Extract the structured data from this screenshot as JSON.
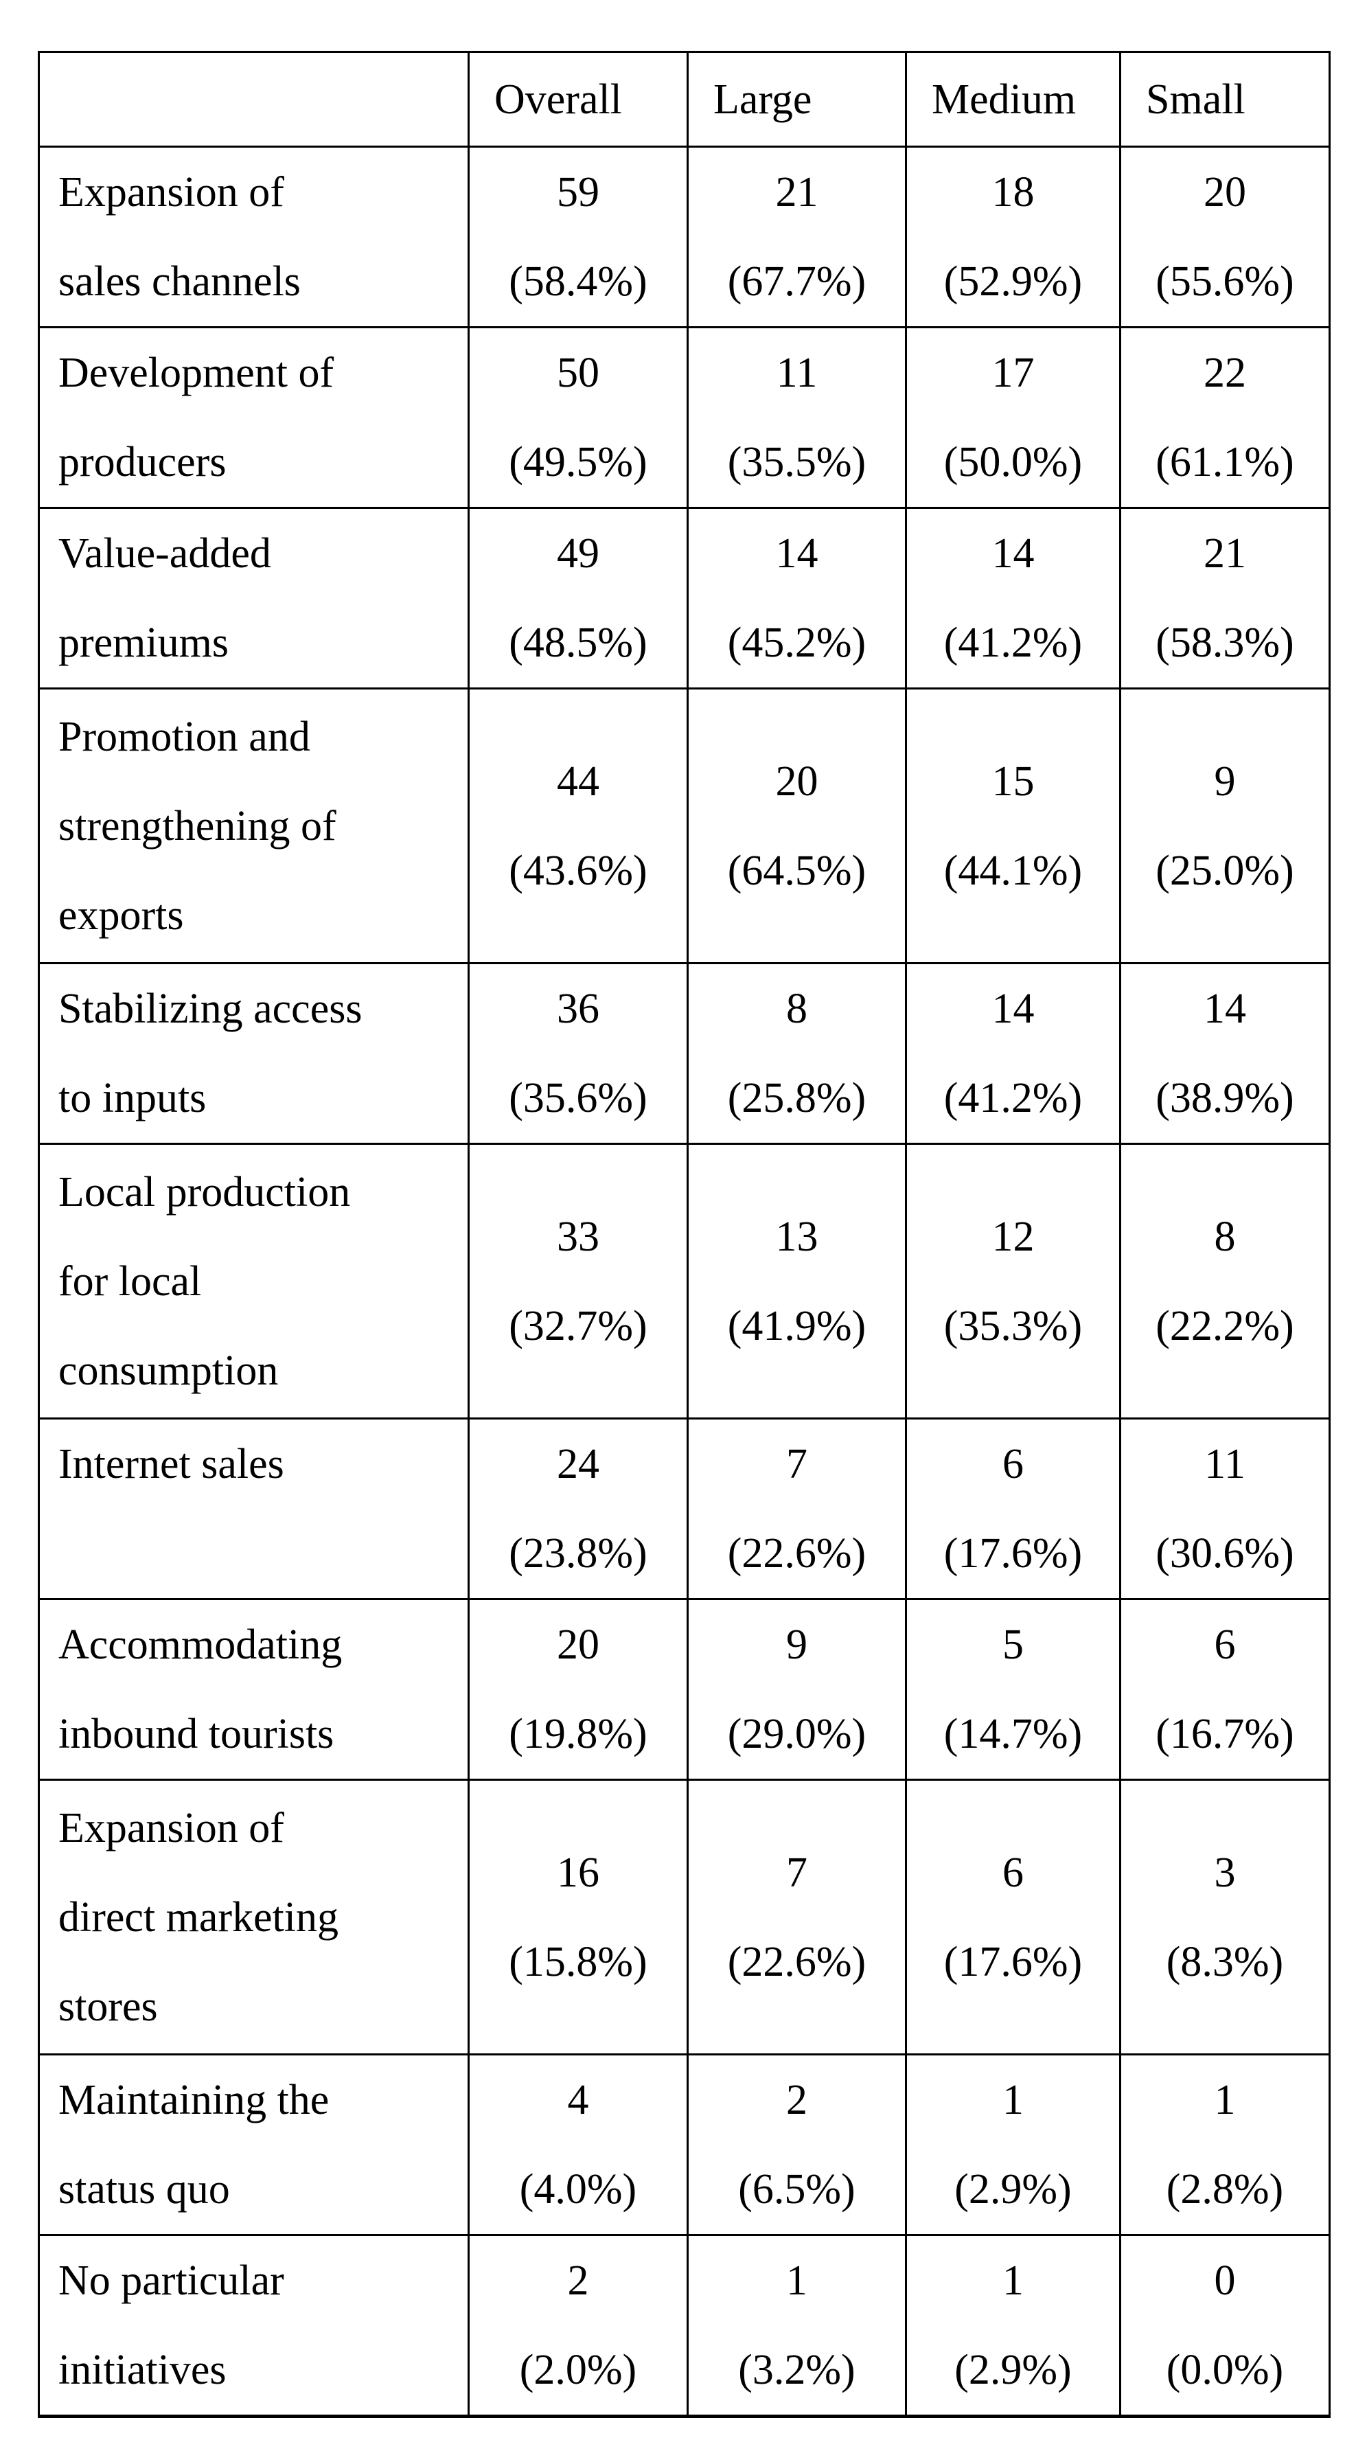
{
  "colors": {
    "text": "#000000",
    "background": "#ffffff",
    "border": "#000000"
  },
  "table": {
    "columns": [
      "",
      "Overall",
      "Large",
      "Medium",
      "Small"
    ],
    "rows": [
      {
        "label_lines": [
          "Expansion of",
          "sales channels"
        ],
        "cells": [
          [
            "59",
            "(58.4%)"
          ],
          [
            "21",
            "(67.7%)"
          ],
          [
            "18",
            "(52.9%)"
          ],
          [
            "20",
            "(55.6%)"
          ]
        ]
      },
      {
        "label_lines": [
          "Development of",
          "producers"
        ],
        "cells": [
          [
            "50",
            "(49.5%)"
          ],
          [
            "11",
            "(35.5%)"
          ],
          [
            "17",
            "(50.0%)"
          ],
          [
            "22",
            "(61.1%)"
          ]
        ]
      },
      {
        "label_lines": [
          "Value-added",
          "premiums"
        ],
        "cells": [
          [
            "49",
            "(48.5%)"
          ],
          [
            "14",
            "(45.2%)"
          ],
          [
            "14",
            "(41.2%)"
          ],
          [
            "21",
            "(58.3%)"
          ]
        ]
      },
      {
        "label_lines": [
          "Promotion and",
          "strengthening of",
          "exports"
        ],
        "cells": [
          [
            "44",
            "(43.6%)"
          ],
          [
            "20",
            "(64.5%)"
          ],
          [
            "15",
            "(44.1%)"
          ],
          [
            "9",
            "(25.0%)"
          ]
        ]
      },
      {
        "label_lines": [
          "Stabilizing access",
          "to inputs"
        ],
        "cells": [
          [
            "36",
            "(35.6%)"
          ],
          [
            "8",
            "(25.8%)"
          ],
          [
            "14",
            "(41.2%)"
          ],
          [
            "14",
            "(38.9%)"
          ]
        ]
      },
      {
        "label_lines": [
          "Local production",
          "for local",
          "consumption"
        ],
        "cells": [
          [
            "33",
            "(32.7%)"
          ],
          [
            "13",
            "(41.9%)"
          ],
          [
            "12",
            "(35.3%)"
          ],
          [
            "8",
            "(22.2%)"
          ]
        ]
      },
      {
        "label_lines": [
          "Internet sales"
        ],
        "cells": [
          [
            "24",
            "(23.8%)"
          ],
          [
            "7",
            "(22.6%)"
          ],
          [
            "6",
            "(17.6%)"
          ],
          [
            "11",
            "(30.6%)"
          ]
        ]
      },
      {
        "label_lines": [
          "Accommodating",
          "inbound tourists"
        ],
        "cells": [
          [
            "20",
            "(19.8%)"
          ],
          [
            "9",
            "(29.0%)"
          ],
          [
            "5",
            "(14.7%)"
          ],
          [
            "6",
            "(16.7%)"
          ]
        ]
      },
      {
        "label_lines": [
          "Expansion of",
          "direct marketing",
          "stores"
        ],
        "cells": [
          [
            "16",
            "(15.8%)"
          ],
          [
            "7",
            "(22.6%)"
          ],
          [
            "6",
            "(17.6%)"
          ],
          [
            "3",
            "(8.3%)"
          ]
        ]
      },
      {
        "label_lines": [
          "Maintaining the",
          "status quo"
        ],
        "cells": [
          [
            "4",
            "(4.0%)"
          ],
          [
            "2",
            "(6.5%)"
          ],
          [
            "1",
            "(2.9%)"
          ],
          [
            "1",
            "(2.8%)"
          ]
        ]
      },
      {
        "label_lines": [
          "No particular",
          "initiatives"
        ],
        "cells": [
          [
            "2",
            "(2.0%)"
          ],
          [
            "1",
            "(3.2%)"
          ],
          [
            "1",
            "(2.9%)"
          ],
          [
            "0",
            "(0.0%)"
          ]
        ]
      }
    ]
  }
}
